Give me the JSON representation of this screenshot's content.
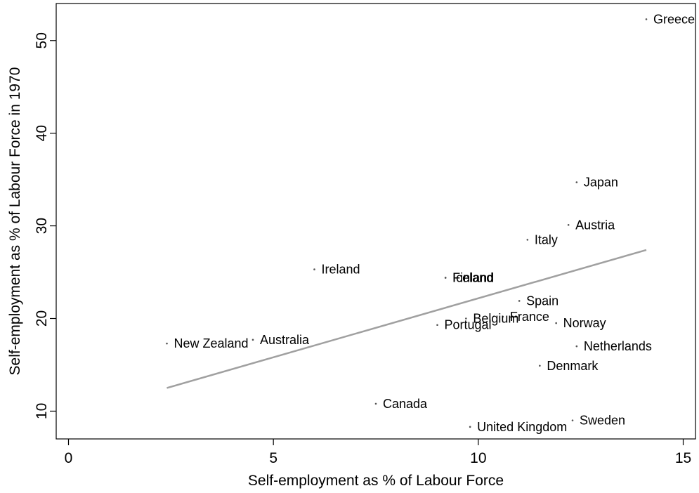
{
  "chart_data": {
    "type": "scatter",
    "title": "",
    "xlabel": "Self-employment as % of Labour Force",
    "ylabel": "Self-employment as % of Labour Force in 1970",
    "xlim": [
      -0.3,
      15.3
    ],
    "ylim": [
      7.0,
      54.0
    ],
    "xticks": [
      0,
      5,
      10,
      15
    ],
    "yticks": [
      10,
      20,
      30,
      40,
      50
    ],
    "grid": false,
    "legend": "none",
    "points": [
      {
        "label": "Greece",
        "x": 14.1,
        "y": 52.3
      },
      {
        "label": "Japan",
        "x": 12.4,
        "y": 34.7
      },
      {
        "label": "Austria",
        "x": 12.2,
        "y": 30.1
      },
      {
        "label": "Italy",
        "x": 11.2,
        "y": 28.5
      },
      {
        "label": "Ireland",
        "x": 6.0,
        "y": 25.3
      },
      {
        "label": "Finland",
        "x": 9.2,
        "y": 24.4
      },
      {
        "label": "Iceland",
        "x": 9.2,
        "y": 24.4
      },
      {
        "label": "Spain",
        "x": 11.0,
        "y": 21.9
      },
      {
        "label": "France",
        "x": 10.6,
        "y": 20.2
      },
      {
        "label": "Belgium",
        "x": 9.7,
        "y": 20.0
      },
      {
        "label": "Portugal",
        "x": 9.0,
        "y": 19.3
      },
      {
        "label": "Norway",
        "x": 11.9,
        "y": 19.5
      },
      {
        "label": "Australia",
        "x": 4.5,
        "y": 17.7
      },
      {
        "label": "New Zealand",
        "x": 2.4,
        "y": 17.3
      },
      {
        "label": "Netherlands",
        "x": 12.4,
        "y": 17.0
      },
      {
        "label": "Denmark",
        "x": 11.5,
        "y": 14.9
      },
      {
        "label": "Canada",
        "x": 7.5,
        "y": 10.8
      },
      {
        "label": "Sweden",
        "x": 12.3,
        "y": 9.0
      },
      {
        "label": "United Kingdom",
        "x": 9.8,
        "y": 8.3
      }
    ],
    "fit_line": {
      "x": [
        2.4,
        14.1
      ],
      "y": [
        12.5,
        27.4
      ]
    },
    "colors": {
      "points": "#555555",
      "fit_line": "#a0a0a0",
      "axes": "#000000"
    }
  }
}
